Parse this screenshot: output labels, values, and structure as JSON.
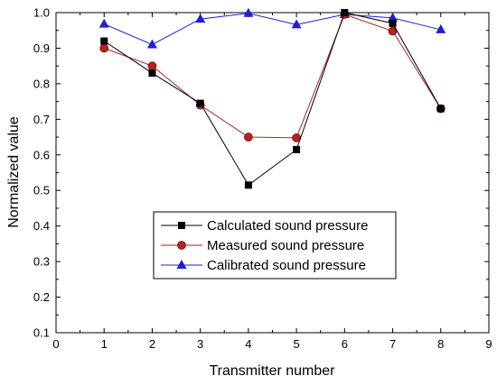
{
  "chart_data": {
    "type": "line",
    "xlabel": "Transmitter number",
    "ylabel": "Normalized value",
    "xlim": [
      0,
      9
    ],
    "ylim": [
      0.1,
      1.0
    ],
    "x_ticks": [
      "0",
      "1",
      "2",
      "3",
      "4",
      "5",
      "6",
      "7",
      "8",
      "9"
    ],
    "y_ticks": [
      "0.1",
      "0.2",
      "0.3",
      "0.4",
      "0.5",
      "0.6",
      "0.7",
      "0.8",
      "0.9",
      "1.0"
    ],
    "grid": false,
    "legend_position": "center",
    "x": [
      1,
      2,
      3,
      4,
      5,
      6,
      7,
      8
    ],
    "series": [
      {
        "name": "Calculated sound pressure",
        "values": [
          0.92,
          0.83,
          0.745,
          0.515,
          0.615,
          1.0,
          0.97,
          0.73
        ],
        "color": "#000000",
        "marker": "square"
      },
      {
        "name": "Measured sound pressure",
        "values": [
          0.9,
          0.85,
          0.74,
          0.65,
          0.648,
          0.995,
          0.948,
          0.73
        ],
        "color": "#b22222",
        "marker": "circle"
      },
      {
        "name": "Calibrated sound pressure",
        "values": [
          0.968,
          0.91,
          0.982,
          0.998,
          0.966,
          0.995,
          0.985,
          0.952
        ],
        "color": "#1f1fd6",
        "marker": "triangle"
      }
    ]
  }
}
